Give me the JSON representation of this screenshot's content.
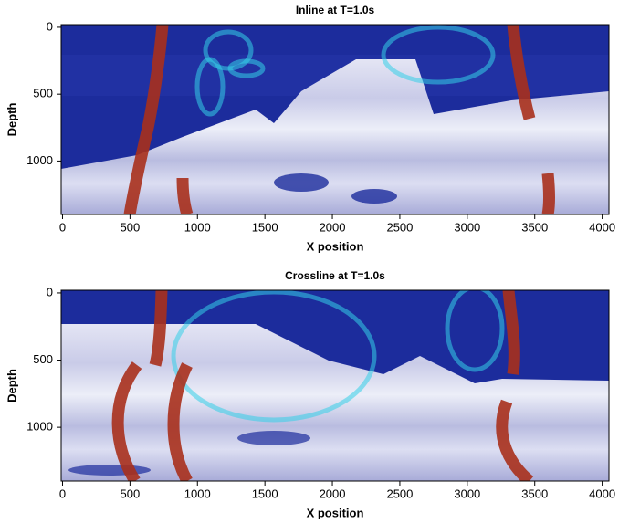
{
  "chart_data": [
    {
      "type": "heatmap",
      "title": "Inline at T=1.0s",
      "x_label": "X position",
      "y_label": "Depth",
      "xlim": [
        -10,
        4050
      ],
      "ylim": [
        -20,
        1400
      ],
      "y_inverted": true,
      "xticks": [
        0,
        500,
        1000,
        1500,
        2000,
        2500,
        3000,
        3500,
        4000
      ],
      "yticks": [
        0,
        500,
        1000
      ]
    },
    {
      "type": "heatmap",
      "title": "Crossline at T=1.0s",
      "x_label": "X position",
      "y_label": "Depth",
      "xlim": [
        -10,
        4050
      ],
      "ylim": [
        -20,
        1400
      ],
      "y_inverted": true,
      "xticks": [
        0,
        500,
        1000,
        1500,
        2000,
        2500,
        3000,
        3500,
        4000
      ],
      "yticks": [
        0,
        500,
        1000
      ]
    }
  ]
}
